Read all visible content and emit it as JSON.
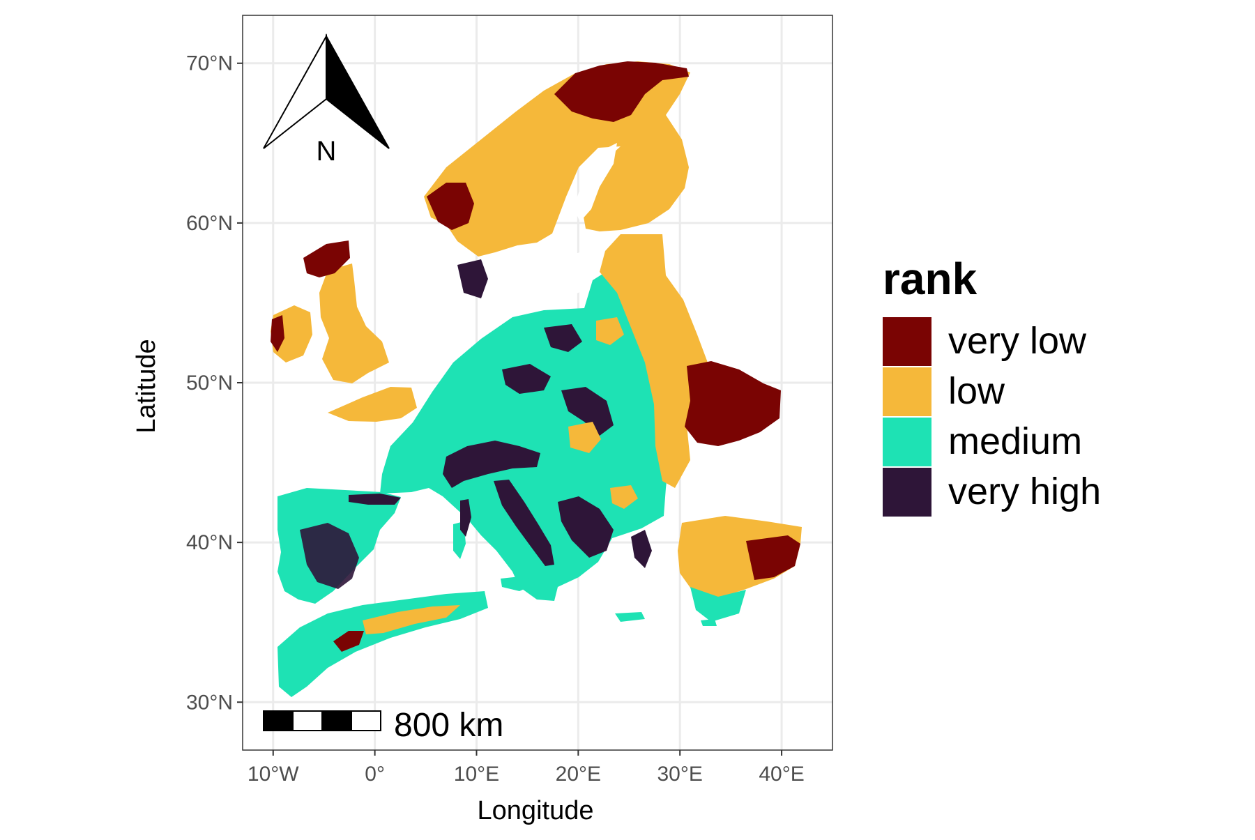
{
  "map": {
    "axes": {
      "x_label": "Longitude",
      "y_label": "Latitude",
      "x_ticks": [
        {
          "value": -10,
          "label": "10°W"
        },
        {
          "value": 0,
          "label": "0°"
        },
        {
          "value": 10,
          "label": "10°E"
        },
        {
          "value": 20,
          "label": "20°E"
        },
        {
          "value": 30,
          "label": "30°E"
        },
        {
          "value": 40,
          "label": "40°E"
        }
      ],
      "y_ticks": [
        {
          "value": 30,
          "label": "30°N"
        },
        {
          "value": 40,
          "label": "40°N"
        },
        {
          "value": 50,
          "label": "50°N"
        },
        {
          "value": 60,
          "label": "60°N"
        },
        {
          "value": 70,
          "label": "70°N"
        }
      ],
      "x_range": [
        -13,
        45
      ],
      "y_range": [
        27,
        73
      ],
      "grid": true
    },
    "legend": {
      "title": "rank",
      "placement": "right",
      "items": [
        {
          "label": "very low",
          "color": "#7a0403"
        },
        {
          "label": "low",
          "color": "#f5b83a"
        },
        {
          "label": "medium",
          "color": "#1ee2b4"
        },
        {
          "label": "very high",
          "color": "#2e1538"
        }
      ]
    },
    "north_arrow": {
      "label": "N"
    },
    "scale_bar": {
      "label": "800 km"
    },
    "colors": {
      "background": "#ffffff",
      "grid": "#ebebeb",
      "panel_border": "#333333",
      "axis_text": "#4d4d4d"
    }
  }
}
